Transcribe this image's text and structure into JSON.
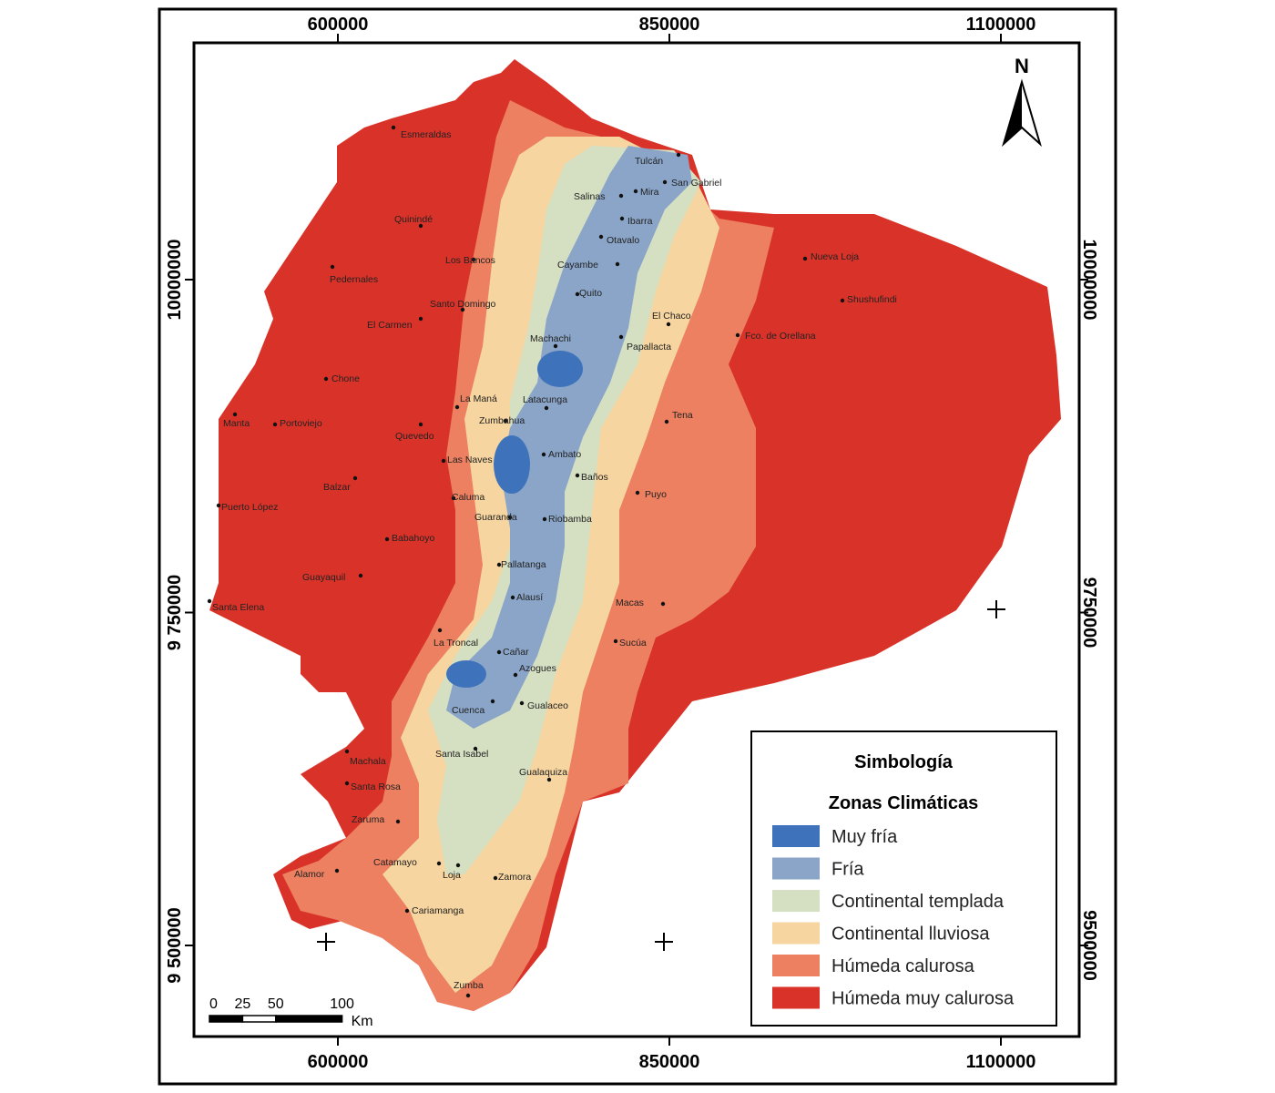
{
  "map": {
    "north": "N",
    "xticks": [
      600000,
      850000,
      1100000
    ],
    "yticks_left": [
      {
        "value": 9500000,
        "label": "9 500000"
      },
      {
        "value": 9750000,
        "label": "9 750000"
      },
      10000000
    ],
    "yticks_right": [
      9500000,
      9750000,
      10000000
    ],
    "cities": [
      "Esmeraldas",
      "Tulcán",
      "San Gabriel",
      "Mira",
      "Salinas",
      "Ibarra",
      "Otavalo",
      "Quinindé",
      "Los Bancos",
      "Cayambe",
      "Pedernales",
      "Santo Domingo",
      "Quito",
      "El Chaco",
      "El Carmen",
      "Machachi",
      "Papallacta",
      "Nueva Loja",
      "Shushufindi",
      "Fco. de Orellana",
      "Chone",
      "La Maná",
      "Latacunga",
      "Zumbahua",
      "Tena",
      "Manta",
      "Portoviejo",
      "Quevedo",
      "Las Naves",
      "Ambato",
      "Baños",
      "Puyo",
      "Balzar",
      "Caluma",
      "Guaranda",
      "Riobamba",
      "Puerto López",
      "Babahoyo",
      "Pallatanga",
      "Guayaquil",
      "Alausí",
      "Santa Elena",
      "Macas",
      "La Troncal",
      "Cañar",
      "Sucúa",
      "Azogues",
      "Cuenca",
      "Gualaceo",
      "Santa Isabel",
      "Machala",
      "Gualaquiza",
      "Santa Rosa",
      "Zaruma",
      "Catamayo",
      "Alamor",
      "Loja",
      "Zamora",
      "Cariamanga",
      "Zumba"
    ],
    "scale_bar": {
      "ticks": [
        0,
        25,
        50,
        100
      ],
      "unit": "Km"
    },
    "legend": {
      "title": "Simbología",
      "subtitle": "Zonas Climáticas",
      "items": [
        {
          "name": "Muy fría",
          "color": "#3e73bb"
        },
        {
          "name": "Fría",
          "color": "#8aa5c8"
        },
        {
          "name": "Continental templada",
          "color": "#d5dfc2"
        },
        {
          "name": "Continental lluviosa",
          "color": "#f7d5a0"
        },
        {
          "name": "Húmeda calurosa",
          "color": "#ec8060"
        },
        {
          "name": "Húmeda muy calurosa",
          "color": "#d93329"
        }
      ]
    }
  }
}
